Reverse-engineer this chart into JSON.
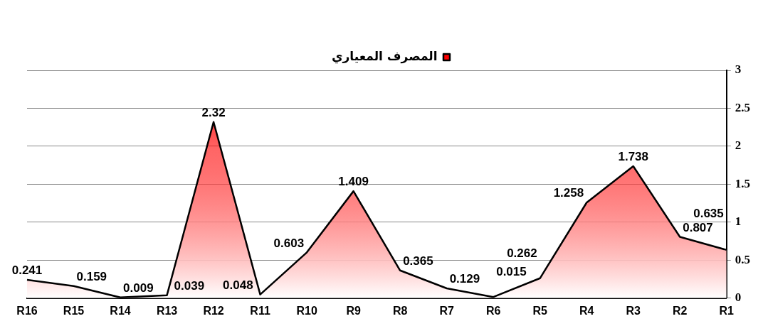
{
  "chart_data": {
    "type": "area",
    "categories": [
      "R16",
      "R15",
      "R14",
      "R13",
      "R12",
      "R11",
      "R10",
      "R9",
      "R8",
      "R7",
      "R6",
      "R5",
      "R4",
      "R3",
      "R2",
      "R1"
    ],
    "series": [
      {
        "name": "المصرف المعياري",
        "color": "#ff0000",
        "values": [
          0.241,
          0.159,
          0.009,
          0.039,
          2.32,
          0.048,
          0.603,
          1.409,
          0.365,
          0.129,
          0.015,
          0.262,
          1.258,
          1.738,
          0.807,
          0.635
        ]
      }
    ],
    "ylim": [
      0,
      3
    ],
    "yticks": [
      0,
      0.5,
      1,
      1.5,
      2,
      2.5,
      3
    ],
    "grid": "y",
    "legend": "top",
    "data_labels": true
  }
}
